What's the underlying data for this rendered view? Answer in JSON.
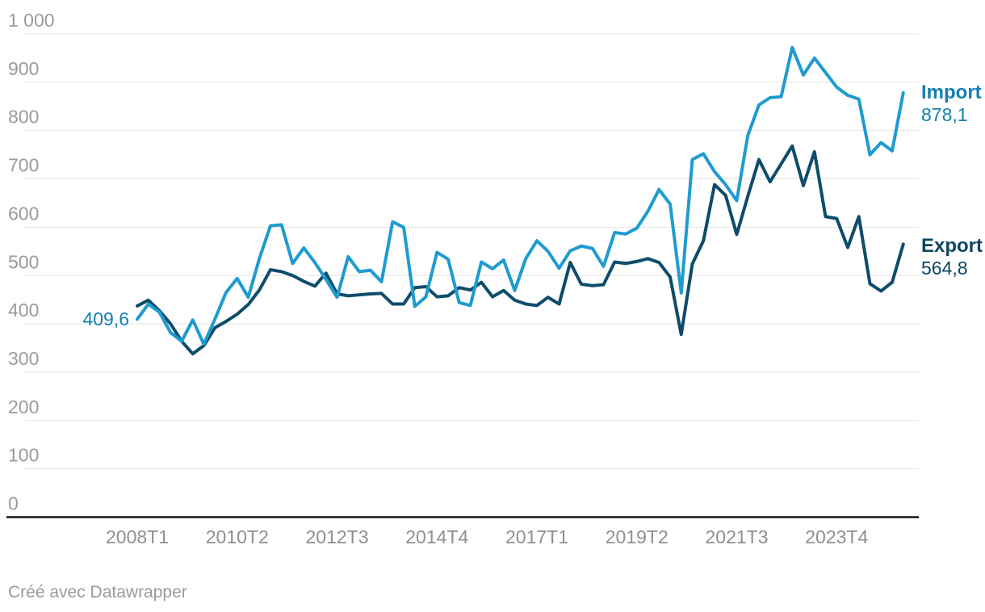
{
  "chart": {
    "footer_credit": "Créé avec Datawrapper"
  },
  "chart_data": {
    "type": "line",
    "title": "",
    "x_axis": {
      "unit": "quarter",
      "start": "2008T1",
      "end": "2025T2",
      "tick_labels": [
        {
          "q": 0,
          "label": "2008T1"
        },
        {
          "q": 9,
          "label": "2010T2"
        },
        {
          "q": 18,
          "label": "2012T3"
        },
        {
          "q": 27,
          "label": "2014T4"
        },
        {
          "q": 36,
          "label": "2017T1"
        },
        {
          "q": 45,
          "label": "2019T2"
        },
        {
          "q": 54,
          "label": "2021T3"
        },
        {
          "q": 63,
          "label": "2023T4"
        }
      ]
    },
    "y_axis": {
      "min": 0,
      "max": 1000,
      "tick_step": 100,
      "grid": true,
      "tick_labels": [
        "0",
        "100",
        "200",
        "300",
        "400",
        "500",
        "600",
        "700",
        "800",
        "900",
        "1 000"
      ]
    },
    "legend_position": "end-of-line-labels",
    "colors": {
      "grid": "#e3e3e3",
      "axis": "#161616",
      "y_tick_text": "#9b9b9b",
      "x_tick_text": "#8f8f8f",
      "footer_text": "#9a9a9a"
    },
    "series": [
      {
        "name": "Import",
        "color": "#1f9bd0",
        "label_color": "#1380b2",
        "start_label": "409,6",
        "end_label": "878,1",
        "first_value": 409.6,
        "last_value": 878.1,
        "values": [
          409.6,
          441,
          424,
          382,
          364,
          408,
          358,
          410,
          465,
          494,
          455,
          535,
          603,
          605,
          525,
          557,
          527,
          492,
          455,
          539,
          508,
          511,
          487,
          611,
          600,
          436,
          456,
          548,
          534,
          444,
          438,
          528,
          514,
          532,
          469,
          535,
          572,
          550,
          515,
          551,
          561,
          556,
          519,
          589,
          586,
          598,
          633,
          678,
          648,
          464,
          740,
          752,
          715,
          688,
          655,
          790,
          853,
          868,
          870,
          972,
          915,
          950,
          920,
          890,
          873,
          865,
          750,
          775,
          758,
          878.1
        ]
      },
      {
        "name": "Export",
        "color": "#0e4c6b",
        "label_color": "#0d455e",
        "start_label": "",
        "end_label": "564,8",
        "first_value": 437,
        "last_value": 564.8,
        "values": [
          437,
          449,
          427,
          400,
          364,
          338,
          355,
          392,
          405,
          420,
          440,
          470,
          512,
          508,
          500,
          488,
          478,
          505,
          462,
          458,
          460,
          462,
          463,
          441,
          441,
          475,
          477,
          456,
          458,
          475,
          470,
          486,
          456,
          469,
          449,
          441,
          438,
          455,
          441,
          527,
          482,
          479,
          481,
          528,
          525,
          529,
          535,
          527,
          497,
          378,
          524,
          572,
          688,
          666,
          585,
          664,
          740,
          694,
          731,
          768,
          686,
          756,
          622,
          618,
          558,
          622,
          483,
          468,
          486,
          564.8
        ]
      }
    ]
  }
}
